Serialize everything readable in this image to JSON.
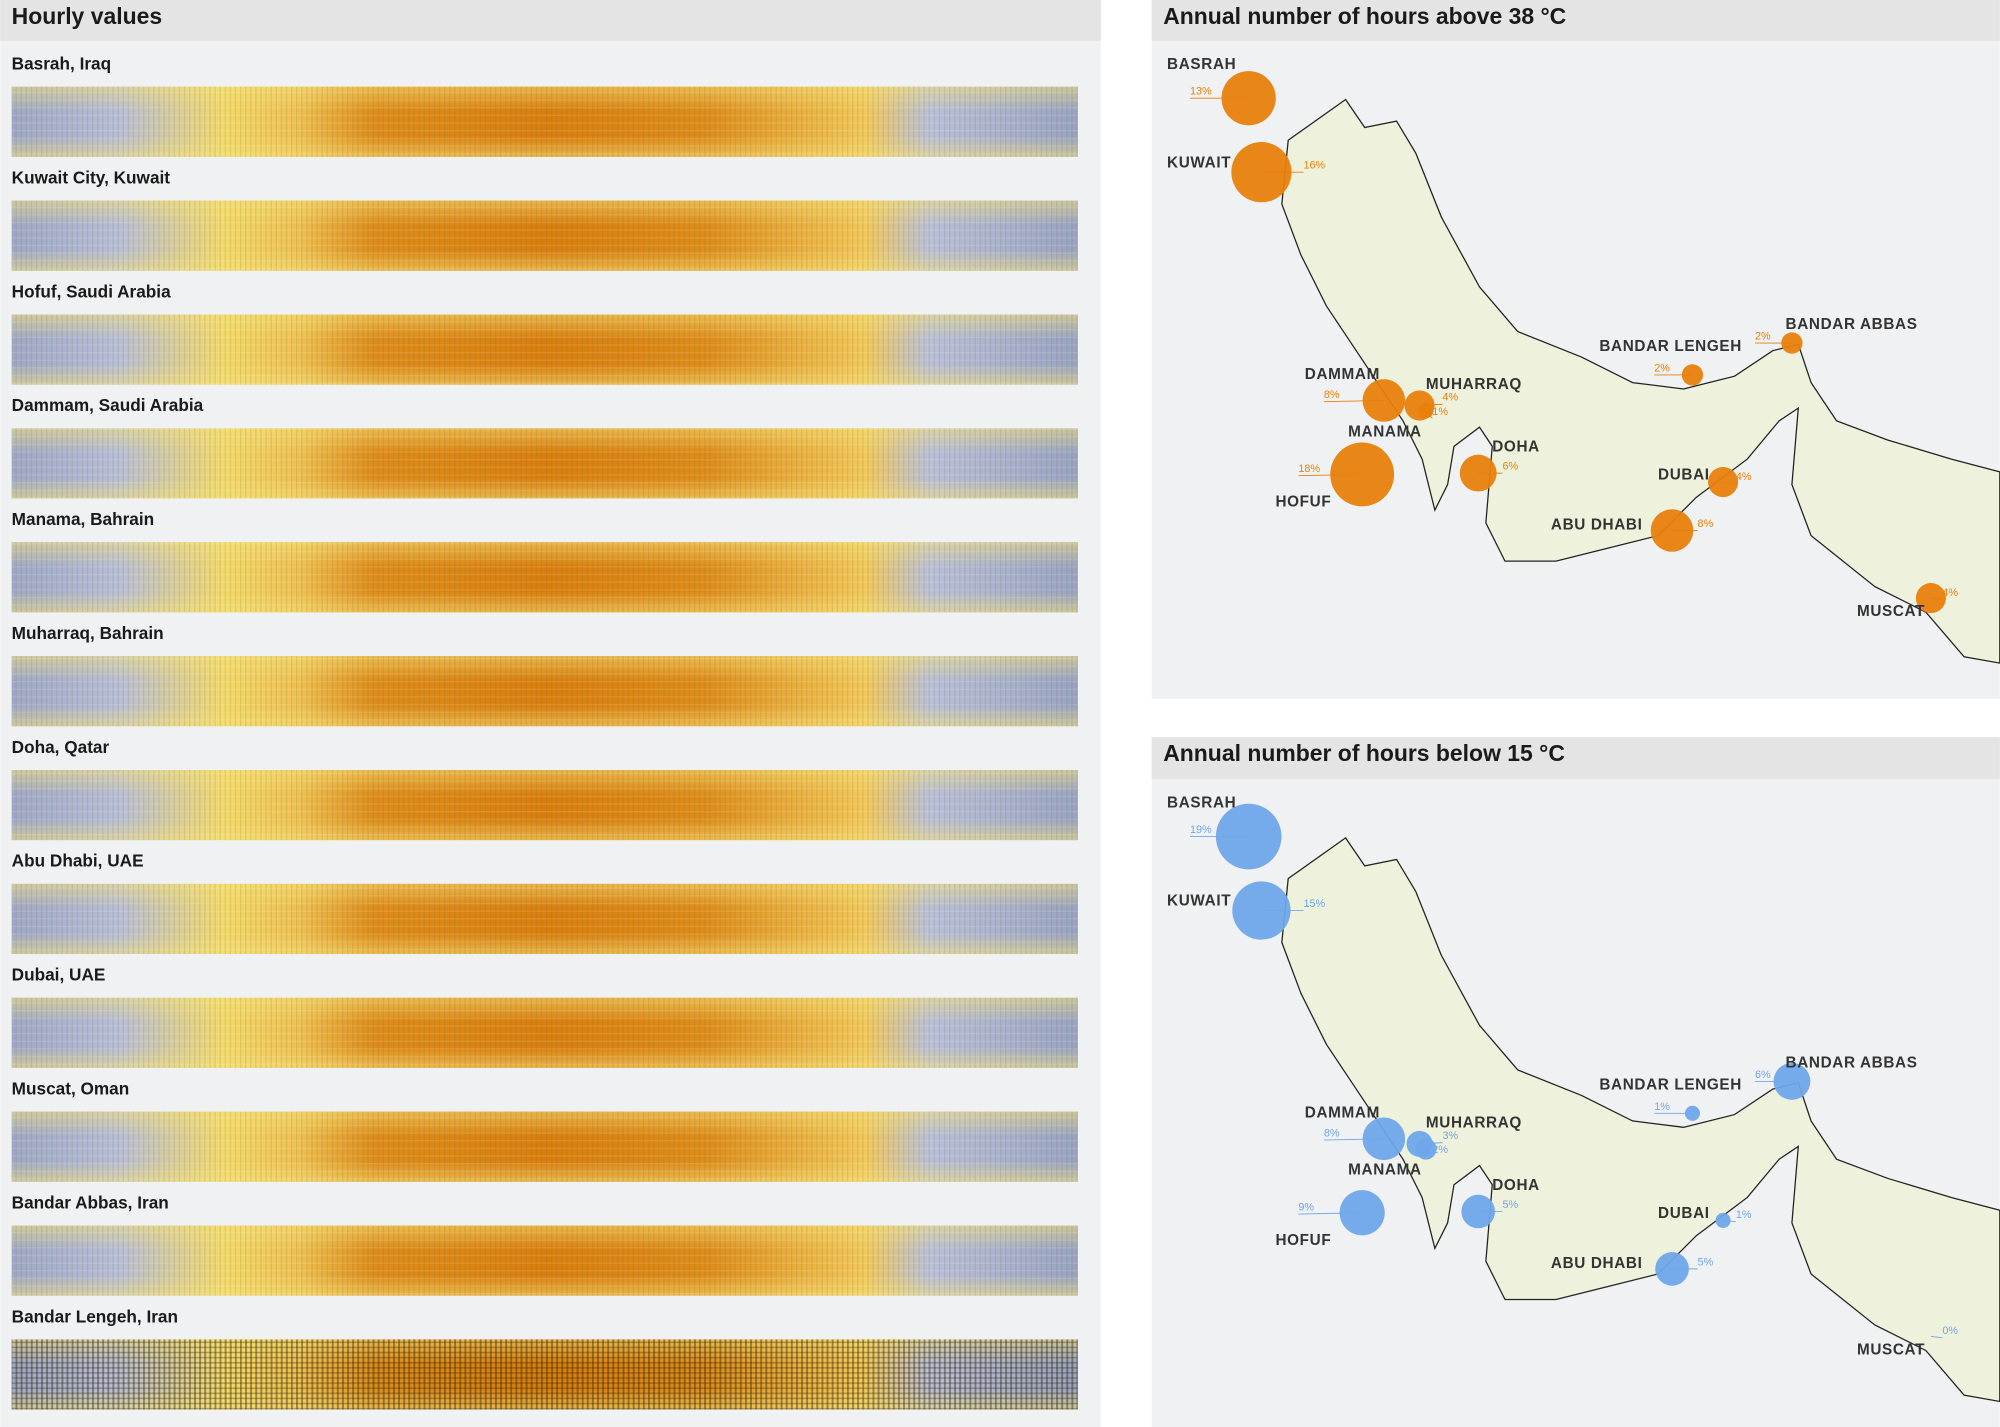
{
  "left": {
    "title": "Hourly values",
    "rows": [
      "Basrah, Iraq",
      "Kuwait City, Kuwait",
      "Hofuf, Saudi Arabia",
      "Dammam, Saudi Arabia",
      "Manama, Bahrain",
      "Muharraq, Bahrain",
      "Doha, Qatar",
      "Abu Dhabi, UAE",
      "Dubai, UAE",
      "Muscat, Oman",
      "Bandar Abbas, Iran",
      "Bandar Lengeh, Iran"
    ]
  },
  "maps": [
    {
      "title": "Annual number of hours above 38 °C",
      "color": "#e8800c",
      "cities": [
        "BASRAH",
        "KUWAIT",
        "DAMMAM",
        "MUHARRAQ",
        "MANAMA",
        "HOFUF",
        "DOHA",
        "BANDAR LENGEH",
        "BANDAR ABBAS",
        "DUBAI",
        "ABU DHABI",
        "MUSCAT"
      ],
      "values": [
        13,
        16,
        8,
        4,
        1,
        18,
        6,
        2,
        2,
        4,
        8,
        4
      ],
      "value_labels": [
        "13%",
        "16%",
        "8%",
        "4%",
        "1%",
        "18%",
        "6%",
        "2%",
        "2%",
        "4%",
        "8%",
        "4%"
      ]
    },
    {
      "title": "Annual number of hours below 15 °C",
      "color": "#6fa6ea",
      "cities": [
        "BASRAH",
        "KUWAIT",
        "DAMMAM",
        "MUHARRAQ",
        "MANAMA",
        "HOFUF",
        "DOHA",
        "BANDAR LENGEH",
        "BANDAR ABBAS",
        "DUBAI",
        "ABU DHABI",
        "MUSCAT"
      ],
      "values": [
        19,
        15,
        8,
        3,
        2,
        9,
        5,
        1,
        6,
        1,
        5,
        0
      ],
      "value_labels": [
        "19%",
        "15%",
        "8%",
        "3%",
        "2%",
        "9%",
        "5%",
        "1%",
        "6%",
        "1%",
        "5%",
        "0%"
      ]
    }
  ]
}
